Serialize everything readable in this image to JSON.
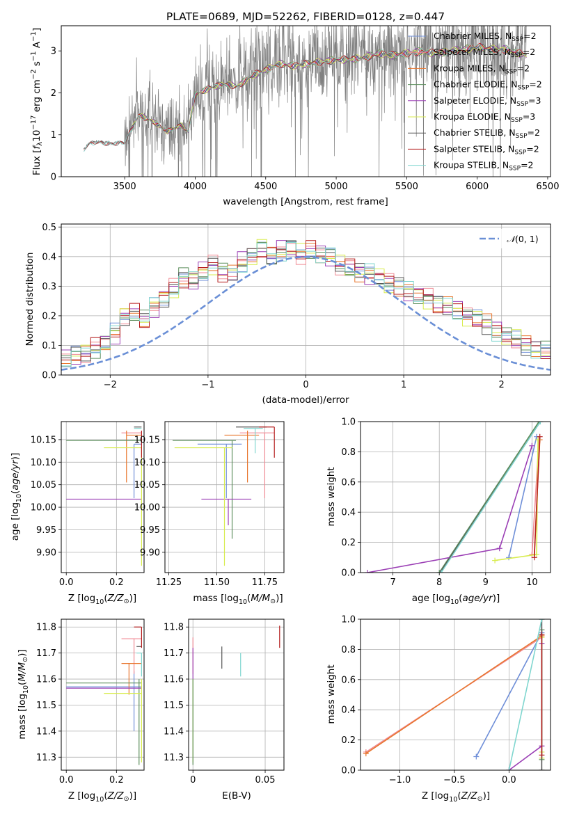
{
  "colors": {
    "Chabrier MILES": "#6f8fd8",
    "Salpeter MILES": "#f08a94",
    "Kroupa MILES": "#e8762e",
    "Chabrier ELODIE": "#5d8f5d",
    "Salpeter ELODIE": "#9b3fb5",
    "Kroupa ELODIE": "#d8ec4f",
    "Chabrier STELIB": "#555555",
    "Salpeter STELIB": "#b51f1f",
    "Kroupa STELIB": "#7fd6cf",
    "gauss": "#6a8fd6",
    "data": "#808080"
  },
  "chart_data": [
    {
      "id": "spectrum",
      "type": "line",
      "title": "PLATE=0689, MJD=52262, FIBERID=0128, z=0.447",
      "xlabel": "wavelength [Angstrom, rest frame]",
      "ylabel": "Flux [f_λ10^-17 erg cm^-2 s^-1 A^-1]",
      "xlim": [
        3050,
        6520
      ],
      "ylim": [
        0,
        3.6
      ],
      "xticks": [
        3500,
        4000,
        4500,
        5000,
        5500,
        6000,
        6500
      ],
      "yticks": [
        0,
        1,
        2,
        3
      ],
      "grid": false,
      "legend_position": "top-right",
      "legend": [
        {
          "name": "Chabrier MILES",
          "n": "2"
        },
        {
          "name": "Salpeter MILES",
          "n": "2"
        },
        {
          "name": "Kroupa MILES",
          "n": "2"
        },
        {
          "name": "Chabrier ELODIE",
          "n": "2"
        },
        {
          "name": "Salpeter ELODIE",
          "n": "3"
        },
        {
          "name": "Kroupa ELODIE",
          "n": "3"
        },
        {
          "name": "Chabrier STELIB",
          "n": "2"
        },
        {
          "name": "Salpeter STELIB",
          "n": "2"
        },
        {
          "name": "Kroupa STELIB",
          "n": "2"
        }
      ],
      "continuum": {
        "x": [
          3210,
          3240,
          3300,
          3400,
          3500,
          3600,
          3700,
          3800,
          3900,
          3950,
          4000,
          4100,
          4200,
          4300,
          4400,
          4500,
          4600,
          4700,
          4800,
          4900,
          5000,
          5100,
          5200,
          5300,
          5400,
          5500,
          5600,
          5700,
          5800,
          5900,
          6000,
          6100,
          6200,
          6350
        ],
        "y": [
          0.65,
          0.78,
          0.85,
          0.8,
          0.82,
          1.5,
          1.35,
          1.1,
          1.25,
          1.1,
          2.0,
          2.15,
          2.25,
          2.2,
          2.45,
          2.6,
          2.75,
          2.7,
          2.75,
          2.8,
          2.85,
          2.85,
          2.9,
          3.0,
          2.95,
          3.0,
          3.05,
          3.0,
          3.05,
          3.1,
          3.15,
          3.1,
          3.1,
          2.95
        ]
      }
    },
    {
      "id": "residuals",
      "type": "histogram",
      "xlabel": "(data-model)/error",
      "ylabel": "Normed distribution",
      "xlim": [
        -2.5,
        2.5
      ],
      "ylim": [
        0,
        0.51
      ],
      "xticks": [
        -2,
        -1,
        0,
        1,
        2
      ],
      "yticks": [
        0.0,
        0.1,
        0.2,
        0.3,
        0.4,
        0.5
      ],
      "grid": true,
      "legend_position": "top-right",
      "legend": [
        {
          "name": "N(0,1)"
        }
      ],
      "bin_width": 0.1,
      "base": [
        0.01,
        0.01,
        0.015,
        0.02,
        0.03,
        0.045,
        0.07,
        0.055,
        0.065,
        0.075,
        0.09,
        0.11,
        0.14,
        0.2,
        0.21,
        0.19,
        0.23,
        0.26,
        0.29,
        0.33,
        0.32,
        0.35,
        0.37,
        0.35,
        0.34,
        0.38,
        0.4,
        0.43,
        0.4,
        0.42,
        0.43,
        0.41,
        0.42,
        0.41,
        0.4,
        0.37,
        0.36,
        0.35,
        0.34,
        0.33,
        0.31,
        0.3,
        0.28,
        0.27,
        0.26,
        0.24,
        0.23,
        0.22,
        0.2,
        0.19,
        0.17,
        0.15,
        0.13,
        0.12,
        0.1,
        0.09,
        0.08,
        0.07,
        0.07,
        0.06,
        0.055,
        0.05,
        0.04,
        0.035
      ]
    },
    {
      "id": "age-vs-z",
      "type": "errorbar",
      "xlabel": "Z [log10(Z/Z⊙)]",
      "ylabel": "age  [log10(age/yr)]",
      "xlim": [
        -0.02,
        0.31
      ],
      "ylim": [
        9.855,
        10.19
      ],
      "xticks": [
        0.0,
        0.2
      ],
      "yticks": [
        9.9,
        9.95,
        10.0,
        10.05,
        10.1,
        10.15
      ],
      "grid": true,
      "points": [
        {
          "model": "Chabrier MILES",
          "x": 0.27,
          "y": 10.14,
          "xl": 0.27,
          "xr": 0.3,
          "yl": 10.02,
          "yh": 10.14
        },
        {
          "model": "Salpeter MILES",
          "x": 0.25,
          "y": 10.165,
          "xl": 0.22,
          "xr": 0.3,
          "yl": 10.165,
          "yh": 10.165
        },
        {
          "model": "Kroupa MILES",
          "x": 0.24,
          "y": 10.16,
          "xl": 0.24,
          "xr": 0.3,
          "yl": 10.055,
          "yh": 10.17
        },
        {
          "model": "Chabrier ELODIE",
          "x": 0.29,
          "y": 10.148,
          "xl": 0.0,
          "xr": 0.3,
          "yl": 10.148,
          "yh": 10.148
        },
        {
          "model": "Salpeter ELODIE",
          "x": 0.3,
          "y": 10.018,
          "xl": 0.0,
          "xr": 0.3,
          "yl": 10.018,
          "yh": 10.018
        },
        {
          "model": "Kroupa ELODIE",
          "x": 0.3,
          "y": 10.132,
          "xl": 0.15,
          "xr": 0.3,
          "yl": 9.87,
          "yh": 10.132
        },
        {
          "model": "Chabrier STELIB",
          "x": 0.29,
          "y": 10.178,
          "xl": 0.27,
          "xr": 0.3,
          "yl": 10.178,
          "yh": 10.178
        },
        {
          "model": "Salpeter STELIB",
          "x": 0.3,
          "y": 10.17,
          "xl": 0.3,
          "xr": 0.3,
          "yl": 10.11,
          "yh": 10.17
        },
        {
          "model": "Kroupa STELIB",
          "x": 0.3,
          "y": 10.175,
          "xl": 0.27,
          "xr": 0.3,
          "yl": 10.175,
          "yh": 10.175
        }
      ]
    },
    {
      "id": "age-vs-mass",
      "type": "errorbar",
      "xlabel": "mass [log10(M/M⊙)]",
      "ylabel": "",
      "xlim": [
        11.23,
        11.85
      ],
      "ylim": [
        9.855,
        10.19
      ],
      "xticks": [
        11.25,
        11.5,
        11.75
      ],
      "yticks": [
        9.9,
        9.95,
        10.0,
        10.05,
        10.1,
        10.15
      ],
      "grid": true,
      "points": [
        {
          "model": "Chabrier MILES",
          "x": 11.55,
          "y": 10.14,
          "xl": 11.4,
          "xr": 11.63,
          "yl": 10.02,
          "yh": 10.14
        },
        {
          "model": "Salpeter MILES",
          "x": 11.75,
          "y": 10.165,
          "xl": 11.62,
          "xr": 11.8,
          "yl": 10.02,
          "yh": 10.165
        },
        {
          "model": "Kroupa MILES",
          "x": 11.66,
          "y": 10.16,
          "xl": 11.54,
          "xr": 11.72,
          "yl": 10.055,
          "yh": 10.17
        },
        {
          "model": "Chabrier ELODIE",
          "x": 11.58,
          "y": 10.148,
          "xl": 11.27,
          "xr": 11.6,
          "yl": 9.93,
          "yh": 10.148
        },
        {
          "model": "Salpeter ELODIE",
          "x": 11.56,
          "y": 10.018,
          "xl": 11.42,
          "xr": 11.68,
          "yl": 9.96,
          "yh": 10.018
        },
        {
          "model": "Kroupa ELODIE",
          "x": 11.54,
          "y": 10.132,
          "xl": 11.28,
          "xr": 11.58,
          "yl": 9.87,
          "yh": 10.132
        },
        {
          "model": "Chabrier STELIB",
          "x": 11.72,
          "y": 10.178,
          "xl": 11.6,
          "xr": 11.76,
          "yl": 10.178,
          "yh": 10.178
        },
        {
          "model": "Salpeter STELIB",
          "x": 11.8,
          "y": 10.178,
          "xl": 11.72,
          "xr": 11.8,
          "yl": 10.11,
          "yh": 10.178
        },
        {
          "model": "Kroupa STELIB",
          "x": 11.7,
          "y": 10.175,
          "xl": 11.64,
          "xr": 11.74,
          "yl": 10.12,
          "yh": 10.175
        }
      ]
    },
    {
      "id": "weight-vs-age",
      "type": "line",
      "xlabel": "age  [log10(age/yr)]",
      "ylabel": "mass weight",
      "xlim": [
        6.3,
        10.4
      ],
      "ylim": [
        0,
        1.0
      ],
      "xticks": [
        7,
        8,
        9,
        10
      ],
      "yticks": [
        0.0,
        0.2,
        0.4,
        0.6,
        0.8,
        1.0
      ],
      "grid": true,
      "series": [
        {
          "model": "Chabrier MILES",
          "x": [
            9.5,
            10.1
          ],
          "y": [
            0.1,
            0.9
          ]
        },
        {
          "model": "Salpeter MILES",
          "x": [
            10.0,
            10.15
          ],
          "y": [
            0.12,
            0.88
          ]
        },
        {
          "model": "Kroupa MILES",
          "x": [
            10.05,
            10.17
          ],
          "y": [
            0.12,
            0.88
          ]
        },
        {
          "model": "Chabrier ELODIE",
          "x": [
            8.0,
            10.15
          ],
          "y": [
            0.0,
            1.0
          ]
        },
        {
          "model": "Salpeter ELODIE",
          "x": [
            6.45,
            9.3,
            10.0
          ],
          "y": [
            0.0,
            0.16,
            0.84
          ]
        },
        {
          "model": "Kroupa ELODIE",
          "x": [
            9.2,
            10.1,
            10.13
          ],
          "y": [
            0.08,
            0.12,
            0.88
          ]
        },
        {
          "model": "Chabrier STELIB",
          "x": [
            8.02,
            10.18
          ],
          "y": [
            0.0,
            1.0
          ]
        },
        {
          "model": "Salpeter STELIB",
          "x": [
            10.05,
            10.17
          ],
          "y": [
            0.1,
            0.9
          ]
        },
        {
          "model": "Kroupa STELIB",
          "x": [
            8.04,
            10.18
          ],
          "y": [
            0.0,
            1.0
          ]
        }
      ]
    },
    {
      "id": "mass-vs-z",
      "type": "errorbar",
      "xlabel": "Z [log10(Z/Z⊙)]",
      "ylabel": "mass [log10(M/M⊙)]",
      "xlim": [
        -0.02,
        0.31
      ],
      "ylim": [
        11.25,
        11.83
      ],
      "xticks": [
        0.0,
        0.2
      ],
      "yticks": [
        11.3,
        11.4,
        11.5,
        11.6,
        11.7,
        11.8
      ],
      "grid": true,
      "points": [
        {
          "model": "Chabrier MILES",
          "x": 0.27,
          "y": 11.57,
          "xl": 0.0,
          "xr": 0.3,
          "yl": 11.4,
          "yh": 11.63
        },
        {
          "model": "Salpeter MILES",
          "x": 0.27,
          "y": 11.755,
          "xl": 0.22,
          "xr": 0.3,
          "yl": 11.62,
          "yh": 11.755
        },
        {
          "model": "Kroupa MILES",
          "x": 0.25,
          "y": 11.66,
          "xl": 0.22,
          "xr": 0.3,
          "yl": 11.54,
          "yh": 11.66
        },
        {
          "model": "Chabrier ELODIE",
          "x": 0.29,
          "y": 11.585,
          "xl": 0.0,
          "xr": 0.3,
          "yl": 11.27,
          "yh": 11.6
        },
        {
          "model": "Salpeter ELODIE",
          "x": 0.3,
          "y": 11.565,
          "xl": 0.0,
          "xr": 0.3,
          "yl": 11.565,
          "yh": 11.565
        },
        {
          "model": "Kroupa ELODIE",
          "x": 0.3,
          "y": 11.545,
          "xl": 0.15,
          "xr": 0.3,
          "yl": 11.28,
          "yh": 11.6
        },
        {
          "model": "Chabrier STELIB",
          "x": 0.3,
          "y": 11.725,
          "xl": 0.28,
          "xr": 0.3,
          "yl": 11.725,
          "yh": 11.725
        },
        {
          "model": "Salpeter STELIB",
          "x": 0.3,
          "y": 11.8,
          "xl": 0.27,
          "xr": 0.3,
          "yl": 11.72,
          "yh": 11.8
        },
        {
          "model": "Kroupa STELIB",
          "x": 0.3,
          "y": 11.7,
          "xl": 0.28,
          "xr": 0.3,
          "yl": 11.61,
          "yh": 11.7
        }
      ]
    },
    {
      "id": "mass-vs-ebv",
      "type": "errorbar",
      "xlabel": "E(B-V)",
      "ylabel": "",
      "xlim": [
        -0.003,
        0.063
      ],
      "ylim": [
        11.25,
        11.83
      ],
      "xticks": [
        0.0,
        0.05
      ],
      "yticks": [
        11.3,
        11.4,
        11.5,
        11.6,
        11.7,
        11.8
      ],
      "grid": true,
      "points": [
        {
          "model": "Salpeter MILES",
          "x": 0.0,
          "y": 11.755,
          "xl": 0.0,
          "xr": 0.0,
          "yl": 11.62,
          "yh": 11.76
        },
        {
          "model": "Salpeter ELODIE",
          "x": 0.0,
          "y": 11.7,
          "xl": 0.0,
          "xr": 0.0,
          "yl": 11.6,
          "yh": 11.72
        },
        {
          "model": "Kroupa ELODIE",
          "x": 0.0,
          "y": 11.55,
          "xl": 0.0,
          "xr": 0.0,
          "yl": 11.28,
          "yh": 11.6
        },
        {
          "model": "Chabrier ELODIE",
          "x": 0.0,
          "y": 11.5,
          "xl": 0.0,
          "xr": 0.0,
          "yl": 11.27,
          "yh": 11.6
        },
        {
          "model": "Chabrier STELIB",
          "x": 0.02,
          "y": 11.68,
          "xl": 0.02,
          "xr": 0.02,
          "yl": 11.64,
          "yh": 11.725
        },
        {
          "model": "Kroupa STELIB",
          "x": 0.033,
          "y": 11.65,
          "xl": 0.033,
          "xr": 0.033,
          "yl": 11.61,
          "yh": 11.7
        },
        {
          "model": "Salpeter STELIB",
          "x": 0.06,
          "y": 11.76,
          "xl": 0.06,
          "xr": 0.06,
          "yl": 11.72,
          "yh": 11.805
        }
      ]
    },
    {
      "id": "weight-vs-z",
      "type": "line",
      "xlabel": "Z [log10(Z/Z⊙)]",
      "ylabel": "mass weight",
      "xlim": [
        -1.36,
        0.38
      ],
      "ylim": [
        0,
        1.0
      ],
      "xticks": [
        -1.0,
        -0.5,
        0.0
      ],
      "yticks": [
        0.0,
        0.2,
        0.4,
        0.6,
        0.8,
        1.0
      ],
      "grid": true,
      "series": [
        {
          "model": "Chabrier MILES",
          "x": [
            -0.3,
            0.3
          ],
          "y": [
            0.09,
            0.91
          ]
        },
        {
          "model": "Salpeter MILES",
          "x": [
            -1.31,
            0.3
          ],
          "y": [
            0.12,
            0.88
          ]
        },
        {
          "model": "Kroupa MILES",
          "x": [
            -1.31,
            0.3
          ],
          "y": [
            0.11,
            0.89
          ]
        },
        {
          "model": "Chabrier ELODIE",
          "x": [
            0.3,
            0.3
          ],
          "y": [
            0.07,
            0.93
          ]
        },
        {
          "model": "Salpeter ELODIE",
          "x": [
            0.0,
            0.3,
            0.3
          ],
          "y": [
            0.0,
            0.16,
            0.84
          ]
        },
        {
          "model": "Kroupa ELODIE",
          "x": [
            0.3,
            0.3,
            0.3
          ],
          "y": [
            0.08,
            0.12,
            0.88
          ]
        },
        {
          "model": "Chabrier STELIB",
          "x": [
            0.3,
            0.3
          ],
          "y": [
            0.0,
            1.0
          ]
        },
        {
          "model": "Salpeter STELIB",
          "x": [
            0.3,
            0.3
          ],
          "y": [
            0.1,
            0.9
          ]
        },
        {
          "model": "Kroupa STELIB",
          "x": [
            0.0,
            0.3
          ],
          "y": [
            0.0,
            1.0
          ]
        }
      ]
    }
  ]
}
